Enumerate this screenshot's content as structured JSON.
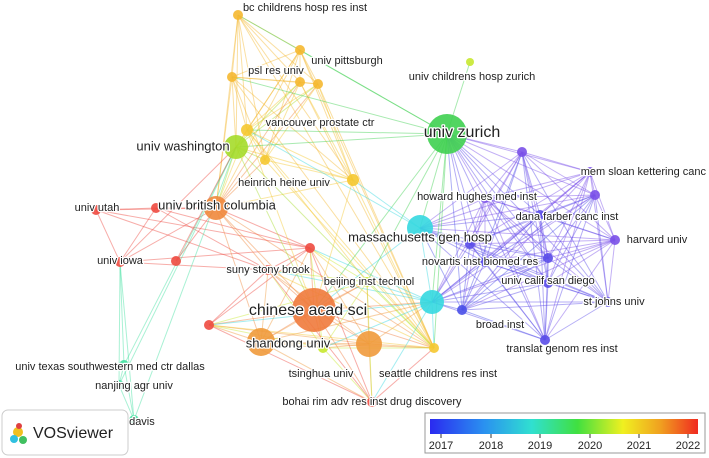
{
  "nodes": [
    {
      "label": "bc childrens hosp res inst"
    },
    {
      "label": "psl res univ"
    },
    {
      "label": "univ pittsburgh"
    },
    {
      "label": "univ childrens hosp zurich"
    },
    {
      "label": "univ zurich"
    },
    {
      "label": "univ washington"
    },
    {
      "label": "vancouver prostate ctr"
    },
    {
      "label": "heinrich heine univ"
    },
    {
      "label": "univ utah"
    },
    {
      "label": "univ british columbia"
    },
    {
      "label": "univ iowa"
    },
    {
      "label": "massachusetts gen hosp"
    },
    {
      "label": "howard hughes med inst"
    },
    {
      "label": "mem sloan kettering canc ctr"
    },
    {
      "label": "dana farber canc inst"
    },
    {
      "label": "harvard univ"
    },
    {
      "label": "novartis inst biomed res"
    },
    {
      "label": "univ calif san diego"
    },
    {
      "label": "st johns univ"
    },
    {
      "label": "broad inst"
    },
    {
      "label": "translat genom res inst"
    },
    {
      "label": "suny stony brook"
    },
    {
      "label": "beijing inst technol"
    },
    {
      "label": "chinese acad sci"
    },
    {
      "label": "shandong univ"
    },
    {
      "label": "tsinghua univ"
    },
    {
      "label": "seattle childrens res inst"
    },
    {
      "label": "bohai rim adv res inst drug discovery"
    },
    {
      "label": "univ texas southwestern med ctr dallas"
    },
    {
      "label": "nanjing agr univ"
    },
    {
      "label": "univ calif davis"
    }
  ],
  "legend": {
    "ticks": [
      2017,
      2018,
      2019,
      2020,
      2021,
      2022
    ]
  },
  "logo": "VOSviewer"
}
